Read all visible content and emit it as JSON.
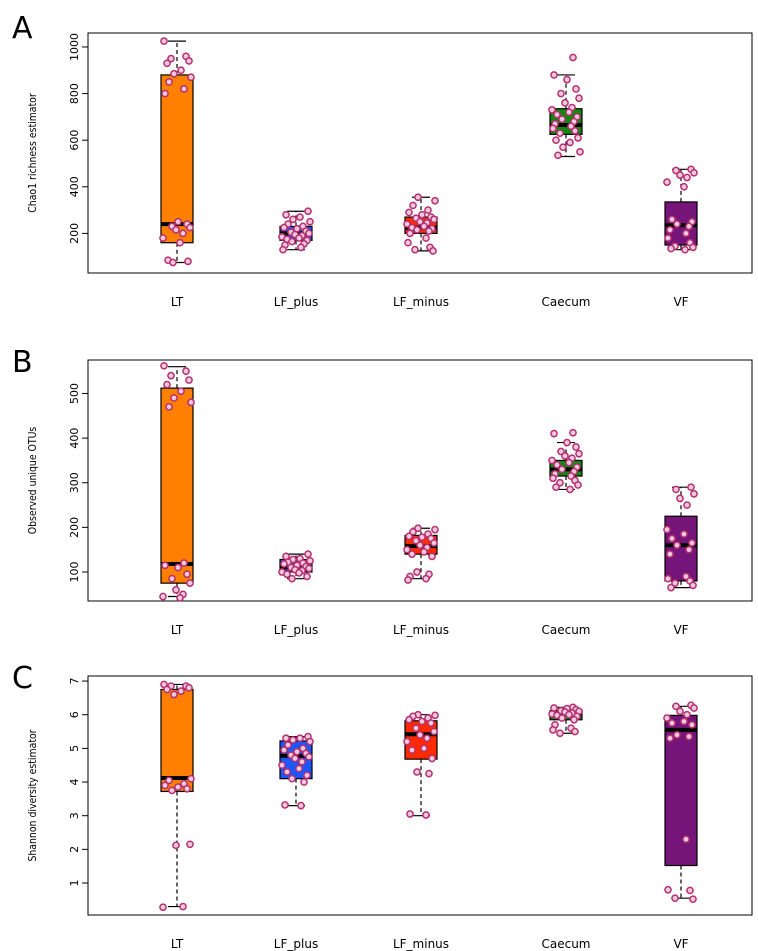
{
  "chart_data": [
    {
      "panel": "A",
      "type": "boxplot",
      "ylabel": "Chao1 richness estimator",
      "ylim": [
        30,
        1060
      ],
      "yticks": [
        200,
        400,
        600,
        800,
        1000
      ],
      "categories": [
        "LT",
        "LF_plus",
        "LF_minus",
        "Caecum",
        "VF"
      ],
      "colors": [
        "#ff7f00",
        "#1a57ff",
        "#ff2a00",
        "#0c8a0c",
        "#75157a"
      ],
      "boxes": [
        {
          "min": 75,
          "q1": 160,
          "median": 240,
          "q3": 880,
          "max": 1025
        },
        {
          "min": 130,
          "q1": 170,
          "median": 200,
          "q3": 230,
          "max": 295
        },
        {
          "min": 125,
          "q1": 200,
          "median": 225,
          "q3": 270,
          "max": 355
        },
        {
          "min": 530,
          "q1": 625,
          "median": 665,
          "q3": 735,
          "max": 880
        },
        {
          "min": 130,
          "q1": 150,
          "median": 235,
          "q3": 335,
          "max": 475
        }
      ],
      "points": [
        [
          1025,
          960,
          950,
          940,
          930,
          900,
          885,
          870,
          850,
          820,
          800,
          250,
          240,
          230,
          225,
          215,
          200,
          180,
          160,
          85,
          80,
          75
        ],
        [
          295,
          280,
          270,
          260,
          250,
          240,
          230,
          225,
          220,
          210,
          205,
          200,
          195,
          190,
          185,
          180,
          175,
          170,
          165,
          155,
          150,
          140,
          130
        ],
        [
          355,
          340,
          320,
          300,
          290,
          280,
          270,
          265,
          260,
          250,
          245,
          240,
          230,
          225,
          220,
          215,
          210,
          200,
          180,
          160,
          140,
          130,
          125
        ],
        [
          955,
          880,
          860,
          820,
          800,
          780,
          760,
          740,
          730,
          720,
          710,
          700,
          690,
          680,
          670,
          660,
          650,
          640,
          630,
          610,
          600,
          590,
          570,
          550,
          535
        ],
        [
          475,
          470,
          460,
          450,
          440,
          420,
          400,
          260,
          250,
          240,
          230,
          215,
          200,
          180,
          160,
          145,
          140,
          135,
          130
        ]
      ]
    },
    {
      "panel": "B",
      "type": "boxplot",
      "ylabel": "Observed unique OTUs",
      "ylim": [
        35,
        575
      ],
      "yticks": [
        100,
        200,
        300,
        400,
        500
      ],
      "categories": [
        "LT",
        "LF_plus",
        "LF_minus",
        "Caecum",
        "VF"
      ],
      "colors": [
        "#ff7f00",
        "#1a57ff",
        "#ff2a00",
        "#0c8a0c",
        "#75157a"
      ],
      "boxes": [
        {
          "min": 45,
          "q1": 75,
          "median": 118,
          "q3": 512,
          "max": 560
        },
        {
          "min": 85,
          "q1": 100,
          "median": 110,
          "q3": 128,
          "max": 140
        },
        {
          "min": 85,
          "q1": 140,
          "median": 158,
          "q3": 182,
          "max": 198
        },
        {
          "min": 285,
          "q1": 315,
          "median": 330,
          "q3": 350,
          "max": 390
        },
        {
          "min": 65,
          "q1": 80,
          "median": 160,
          "q3": 225,
          "max": 290
        }
      ],
      "points": [
        [
          562,
          550,
          540,
          530,
          520,
          505,
          490,
          480,
          470,
          120,
          115,
          110,
          95,
          85,
          75,
          60,
          50,
          45,
          42
        ],
        [
          140,
          135,
          130,
          128,
          125,
          122,
          120,
          118,
          115,
          112,
          110,
          108,
          105,
          103,
          100,
          98,
          95,
          90,
          85
        ],
        [
          198,
          195,
          190,
          185,
          180,
          178,
          175,
          170,
          165,
          160,
          155,
          150,
          145,
          140,
          135,
          100,
          95,
          90,
          85,
          82
        ],
        [
          412,
          410,
          390,
          380,
          370,
          365,
          360,
          355,
          350,
          345,
          340,
          335,
          330,
          325,
          320,
          315,
          310,
          305,
          300,
          295,
          290,
          285
        ],
        [
          290,
          285,
          275,
          265,
          250,
          195,
          185,
          175,
          165,
          160,
          150,
          140,
          90,
          85,
          80,
          75,
          70,
          65
        ]
      ]
    },
    {
      "panel": "C",
      "type": "boxplot",
      "ylabel": "Shannon diversity estimator",
      "ylim": [
        0.05,
        7.15
      ],
      "yticks": [
        1,
        2,
        3,
        4,
        5,
        6,
        7
      ],
      "categories": [
        "LT",
        "LF_plus",
        "LF_minus",
        "Caecum",
        "VF"
      ],
      "colors": [
        "#ff7f00",
        "#1a57ff",
        "#ff2a00",
        "#0c8a0c",
        "#75157a"
      ],
      "boxes": [
        {
          "min": 0.3,
          "q1": 3.72,
          "median": 4.12,
          "q3": 6.75,
          "max": 6.9
        },
        {
          "min": 3.3,
          "q1": 4.1,
          "median": 4.78,
          "q3": 5.22,
          "max": 5.35
        },
        {
          "min": 3.0,
          "q1": 4.68,
          "median": 5.42,
          "q3": 5.82,
          "max": 6.0
        },
        {
          "min": 5.45,
          "q1": 5.85,
          "median": 6.02,
          "q3": 6.12,
          "max": 6.22
        },
        {
          "min": 0.55,
          "q1": 1.52,
          "median": 5.55,
          "q3": 5.98,
          "max": 6.25
        }
      ],
      "points": [
        [
          6.9,
          6.85,
          6.85,
          6.8,
          6.75,
          6.7,
          6.6,
          4.1,
          4.05,
          3.95,
          3.9,
          3.85,
          3.8,
          3.75,
          2.15,
          2.12,
          0.3,
          0.28
        ],
        [
          5.35,
          5.3,
          5.3,
          5.25,
          5.2,
          5.1,
          5.0,
          4.95,
          4.9,
          4.85,
          4.8,
          4.75,
          4.7,
          4.6,
          4.5,
          4.4,
          4.3,
          4.2,
          4.1,
          4.0,
          3.32,
          3.3
        ],
        [
          6.0,
          5.98,
          5.95,
          5.9,
          5.85,
          5.8,
          5.75,
          5.6,
          5.5,
          5.4,
          5.3,
          5.2,
          5.0,
          4.95,
          4.7,
          4.3,
          4.25,
          3.05,
          3.02
        ],
        [
          6.22,
          6.2,
          6.18,
          6.15,
          6.12,
          6.1,
          6.08,
          6.05,
          6.02,
          6.0,
          5.98,
          5.95,
          5.9,
          5.85,
          5.7,
          5.6,
          5.55,
          5.5,
          5.45
        ],
        [
          6.28,
          6.25,
          6.2,
          6.1,
          6.0,
          5.9,
          5.8,
          5.75,
          5.7,
          5.4,
          5.35,
          5.3,
          2.3,
          0.8,
          0.78,
          0.55,
          0.52
        ]
      ]
    }
  ]
}
